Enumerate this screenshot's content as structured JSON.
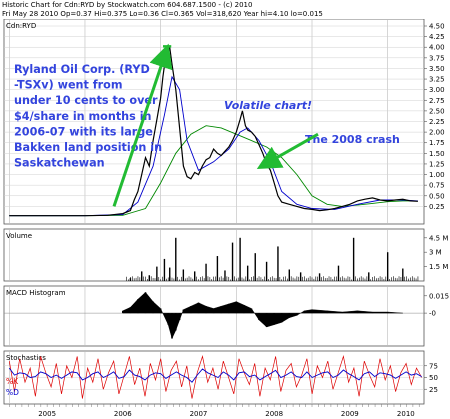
{
  "header": {
    "line1": "Historic Chart for Cdn:RYD by Stockwatch.com 604.687.1500 - (c) 2010",
    "line2": "Fri May 28 2010   Op=0.37  Hi=0.375  Lo=0.36  Cl=0.365  Vol=318,620  Year hi=4.10  lo=0.015"
  },
  "colors": {
    "price": "#000000",
    "ma_short": "#0000cc",
    "ma_long": "#008800",
    "annotation_text": "#3344dd",
    "annotation_arrow": "#22bb33",
    "volume": "#000000",
    "macd": "#000000",
    "stoch_k": "#dd0000",
    "stoch_d": "#0000cc"
  },
  "chart_data": [
    {
      "type": "line",
      "panel": "price",
      "title": "Cdn:RYD",
      "ylim": [
        0,
        4.5
      ],
      "y_ticks": [
        "0.25",
        "0.50",
        "0.75",
        "1.00",
        "1.25",
        "1.50",
        "1.75",
        "2.00",
        "2.25",
        "2.50",
        "2.75",
        "3.00",
        "3.25",
        "3.50",
        "3.75",
        "4.00",
        "4.25",
        "4.50"
      ],
      "x_ticks": [
        "2005",
        "2006",
        "2007",
        "2008",
        "2009",
        "2010"
      ],
      "grid": true,
      "series": [
        {
          "role": "close",
          "x": [
            2005.0,
            2005.5,
            2006.0,
            2006.3,
            2006.5,
            2006.6,
            2006.65,
            2006.7,
            2006.75,
            2006.8,
            2006.85,
            2006.9,
            2006.95,
            2007.0,
            2007.03,
            2007.06,
            2007.09,
            2007.12,
            2007.15,
            2007.2,
            2007.25,
            2007.3,
            2007.35,
            2007.4,
            2007.45,
            2007.5,
            2007.55,
            2007.6,
            2007.65,
            2007.7,
            2007.75,
            2007.8,
            2007.85,
            2007.9,
            2007.95,
            2008.0,
            2008.05,
            2008.08,
            2008.12,
            2008.15,
            2008.2,
            2008.25,
            2008.3,
            2008.35,
            2008.4,
            2008.45,
            2008.5,
            2008.55,
            2008.6,
            2008.7,
            2008.8,
            2008.9,
            2009.0,
            2009.1,
            2009.2,
            2009.3,
            2009.4,
            2009.5,
            2009.6,
            2009.7,
            2009.8,
            2009.9,
            2010.0,
            2010.1,
            2010.2,
            2010.3,
            2010.4
          ],
          "values": [
            0.03,
            0.03,
            0.03,
            0.04,
            0.08,
            0.15,
            0.4,
            0.6,
            1.0,
            1.4,
            1.2,
            1.8,
            2.3,
            2.8,
            3.3,
            3.7,
            3.9,
            4.0,
            3.6,
            3.0,
            2.1,
            1.2,
            0.95,
            0.9,
            1.05,
            1.0,
            1.2,
            1.35,
            1.4,
            1.6,
            1.5,
            1.45,
            1.55,
            1.65,
            1.8,
            2.0,
            2.3,
            2.5,
            2.15,
            2.05,
            2.0,
            1.9,
            1.7,
            1.5,
            1.25,
            1.1,
            0.8,
            0.5,
            0.35,
            0.3,
            0.25,
            0.2,
            0.18,
            0.15,
            0.17,
            0.2,
            0.25,
            0.3,
            0.38,
            0.42,
            0.45,
            0.4,
            0.38,
            0.4,
            0.42,
            0.38,
            0.37
          ]
        },
        {
          "role": "moving-average-short",
          "x": [
            2005.0,
            2006.0,
            2006.5,
            2006.7,
            2006.9,
            2007.05,
            2007.15,
            2007.25,
            2007.35,
            2007.5,
            2007.7,
            2007.9,
            2008.05,
            2008.15,
            2008.3,
            2008.45,
            2008.6,
            2008.8,
            2009.0,
            2009.3,
            2009.6,
            2009.9,
            2010.2,
            2010.4
          ],
          "values": [
            0.03,
            0.03,
            0.06,
            0.35,
            1.2,
            2.4,
            3.3,
            3.0,
            1.8,
            1.1,
            1.3,
            1.6,
            2.0,
            2.1,
            1.8,
            1.3,
            0.6,
            0.3,
            0.2,
            0.18,
            0.3,
            0.4,
            0.4,
            0.38
          ]
        },
        {
          "role": "moving-average-long",
          "x": [
            2005.0,
            2006.0,
            2006.5,
            2006.8,
            2007.0,
            2007.2,
            2007.4,
            2007.6,
            2007.8,
            2008.0,
            2008.2,
            2008.4,
            2008.6,
            2008.8,
            2009.0,
            2009.2,
            2009.4,
            2009.6,
            2009.8,
            2010.0,
            2010.2,
            2010.4
          ],
          "values": [
            0.03,
            0.03,
            0.04,
            0.2,
            0.8,
            1.5,
            1.95,
            2.15,
            2.1,
            1.95,
            1.8,
            1.65,
            1.4,
            1.0,
            0.5,
            0.3,
            0.25,
            0.28,
            0.32,
            0.36,
            0.38,
            0.38
          ]
        }
      ],
      "annotations": [
        {
          "text": "Ryland Oil Corp. (RYD -TSXv) went from under 10 cents to over $4/share in months in 2006-07 with its large Bakken land position in Saskatchewan"
        },
        {
          "text": "Volatile chart!"
        },
        {
          "text": "The 2008 crash"
        }
      ]
    },
    {
      "type": "bar",
      "panel": "volume",
      "title": "Volume",
      "y_ticks": [
        "1.5 M",
        "3 M",
        "4.5 M"
      ],
      "ylim": [
        0,
        5
      ],
      "x": [
        2006.6,
        2006.75,
        2006.85,
        2006.95,
        2007.05,
        2007.12,
        2007.2,
        2007.3,
        2007.45,
        2007.6,
        2007.75,
        2007.85,
        2007.95,
        2008.05,
        2008.15,
        2008.25,
        2008.4,
        2008.55,
        2008.7,
        2008.85,
        2009.1,
        2009.35,
        2009.55,
        2009.75,
        2010.0,
        2010.2
      ],
      "values": [
        0.3,
        1.0,
        0.6,
        1.5,
        2.3,
        1.4,
        4.5,
        1.2,
        1.0,
        1.8,
        2.6,
        1.1,
        4.0,
        4.5,
        1.6,
        2.9,
        2.0,
        3.6,
        1.2,
        0.9,
        0.8,
        1.6,
        4.5,
        0.9,
        3.0,
        1.3
      ]
    },
    {
      "type": "bar",
      "panel": "macd-histogram",
      "title": "MACD Histogram",
      "y_ticks": [
        "-0",
        "0.015"
      ],
      "ylim": [
        -0.025,
        0.02
      ],
      "x": [
        2006.5,
        2006.6,
        2006.7,
        2006.8,
        2006.9,
        2007.0,
        2007.1,
        2007.15,
        2007.2,
        2007.25,
        2007.3,
        2007.4,
        2007.5,
        2007.6,
        2007.7,
        2007.8,
        2007.9,
        2008.0,
        2008.1,
        2008.2,
        2008.3,
        2008.4,
        2008.5,
        2008.6,
        2008.7,
        2008.8,
        2008.9,
        2009.0,
        2009.2,
        2009.4,
        2009.6,
        2009.8,
        2010.0,
        2010.2
      ],
      "values": [
        0.002,
        0.005,
        0.012,
        0.018,
        0.01,
        0.004,
        -0.01,
        -0.022,
        -0.015,
        -0.006,
        0.003,
        0.006,
        0.009,
        0.006,
        0.004,
        0.006,
        0.008,
        0.01,
        0.007,
        0.004,
        -0.006,
        -0.012,
        -0.01,
        -0.008,
        -0.004,
        -0.002,
        0.002,
        0.003,
        0.002,
        0.001,
        0.002,
        0.001,
        0.001,
        0.0
      ]
    },
    {
      "type": "line",
      "panel": "stochastics",
      "title": "Stochastics",
      "y_ticks": [
        "25",
        "50",
        "75"
      ],
      "ylim": [
        0,
        100
      ],
      "series": [
        {
          "name": "%K",
          "x_start": 2005.0,
          "x_end": 2010.45,
          "values": [
            85,
            20,
            90,
            40,
            70,
            10,
            95,
            60,
            30,
            80,
            15,
            75,
            50,
            95,
            5,
            70,
            40,
            90,
            25,
            60,
            85,
            15,
            55,
            95,
            35,
            70,
            10,
            80,
            45,
            90,
            20,
            65,
            85,
            30,
            75,
            5,
            60,
            95,
            40,
            70,
            25,
            85,
            50,
            15,
            90,
            60,
            35,
            80,
            10,
            70,
            45,
            95,
            20,
            65,
            80,
            30,
            55,
            90,
            15,
            75,
            50,
            85,
            25,
            60,
            95,
            40,
            70,
            10,
            85,
            55,
            30,
            90,
            45,
            75,
            20,
            60,
            80,
            35,
            70,
            50
          ]
        },
        {
          "name": "%D",
          "x_start": 2005.0,
          "x_end": 2010.45,
          "values": [
            70,
            55,
            60,
            58,
            50,
            52,
            62,
            58,
            50,
            55,
            48,
            55,
            62,
            60,
            45,
            50,
            58,
            62,
            50,
            55,
            62,
            48,
            52,
            66,
            55,
            52,
            45,
            55,
            60,
            58,
            48,
            55,
            62,
            55,
            50,
            40,
            55,
            68,
            60,
            55,
            50,
            62,
            55,
            45,
            60,
            62,
            52,
            55,
            45,
            52,
            58,
            65,
            50,
            55,
            62,
            52,
            50,
            62,
            50,
            55,
            60,
            62,
            50,
            55,
            66,
            58,
            52,
            45,
            58,
            62,
            52,
            60,
            58,
            55,
            48,
            55,
            62,
            55,
            58,
            52
          ]
        }
      ]
    }
  ]
}
